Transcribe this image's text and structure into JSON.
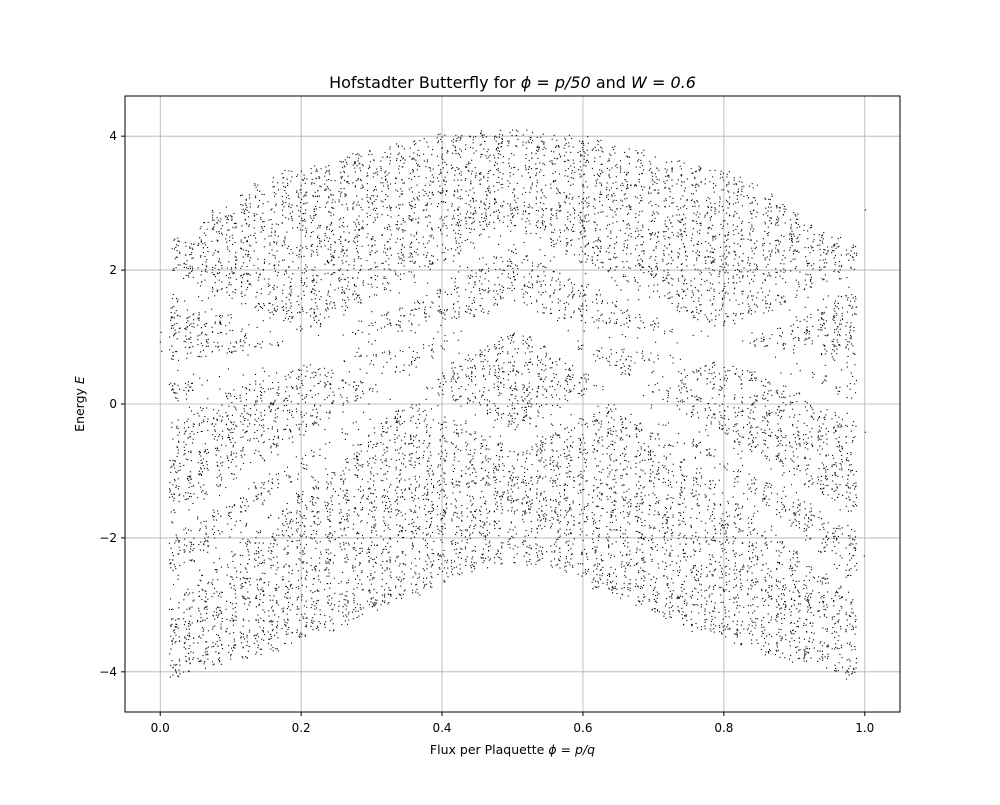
{
  "chart_data": {
    "type": "scatter",
    "title_prefix": "Hofstadter Butterfly for ",
    "title_math_1": "ϕ = p/50",
    "title_joiner": " and ",
    "title_math_2": "W = 0.6",
    "xlabel_prefix": "Flux per Plaquette ",
    "xlabel_math": "ϕ = p/q",
    "ylabel_prefix": "Energy ",
    "ylabel_math": "E",
    "xlim": [
      -0.05,
      1.05
    ],
    "ylim": [
      -4.6,
      4.6
    ],
    "xticks": [
      0.0,
      0.2,
      0.4,
      0.6,
      0.8,
      1.0
    ],
    "xtick_labels": [
      "0.0",
      "0.2",
      "0.4",
      "0.6",
      "0.8",
      "1.0"
    ],
    "yticks": [
      -4,
      -2,
      0,
      2,
      4
    ],
    "ytick_labels": [
      "−4",
      "−2",
      "0",
      "2",
      "4"
    ],
    "grid": true,
    "marker_color": "#000000",
    "flux_denominator": 50,
    "disorder_strength": 0.6,
    "flux_values": [
      0.0,
      0.02,
      0.04,
      0.06,
      0.08,
      0.1,
      0.12,
      0.14,
      0.16,
      0.18,
      0.2,
      0.22,
      0.24,
      0.26,
      0.28,
      0.3,
      0.32,
      0.34,
      0.36,
      0.38,
      0.4,
      0.42,
      0.44,
      0.46,
      0.48,
      0.5,
      0.52,
      0.54,
      0.56,
      0.58,
      0.6,
      0.62,
      0.64,
      0.66,
      0.68,
      0.7,
      0.72,
      0.74,
      0.76,
      0.78,
      0.8,
      0.82,
      0.84,
      0.86,
      0.88,
      0.9,
      0.92,
      0.94,
      0.96,
      0.98,
      1.0
    ],
    "energy_envelope_max": [
      2.4,
      2.5,
      2.6,
      2.75,
      2.9,
      3.0,
      3.15,
      3.3,
      3.4,
      3.5,
      3.55,
      3.6,
      3.65,
      3.7,
      3.75,
      3.8,
      3.85,
      3.9,
      3.95,
      4.0,
      4.05,
      4.05,
      4.05,
      4.1,
      4.1,
      4.1,
      4.1,
      4.05,
      4.05,
      4.05,
      4.0,
      3.95,
      3.9,
      3.85,
      3.8,
      3.75,
      3.7,
      3.65,
      3.6,
      3.55,
      3.5,
      3.4,
      3.3,
      3.15,
      3.0,
      2.9,
      2.75,
      2.6,
      2.5,
      2.4,
      2.4
    ],
    "energy_envelope_min": [
      -4.0,
      -4.1,
      -4.0,
      -3.95,
      -3.9,
      -3.85,
      -3.8,
      -3.75,
      -3.7,
      -3.6,
      -3.5,
      -3.45,
      -3.4,
      -3.3,
      -3.2,
      -3.1,
      -3.0,
      -2.9,
      -2.85,
      -2.75,
      -2.65,
      -2.55,
      -2.5,
      -2.45,
      -2.4,
      -2.4,
      -2.4,
      -2.45,
      -2.5,
      -2.55,
      -2.65,
      -2.75,
      -2.85,
      -2.9,
      -3.0,
      -3.1,
      -3.2,
      -3.3,
      -3.4,
      -3.45,
      -3.5,
      -3.6,
      -3.7,
      -3.75,
      -3.8,
      -3.85,
      -3.9,
      -3.95,
      -4.0,
      -4.1,
      -4.0
    ]
  }
}
